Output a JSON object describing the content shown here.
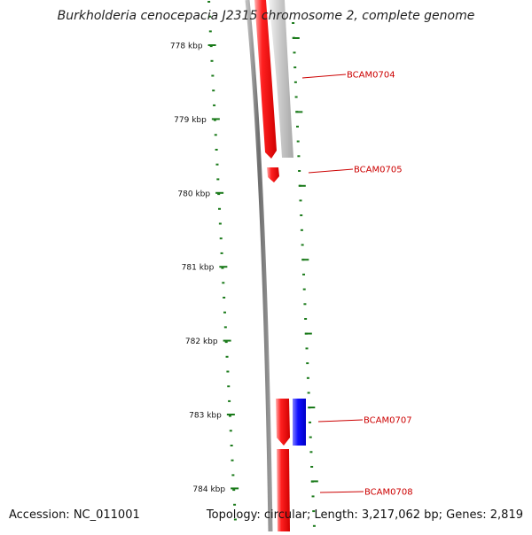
{
  "title": "Burkholderia cenocepacia J2315 chromosome 2, complete genome",
  "footer": {
    "accession": "Accession: NC_011001",
    "summary": "Topology: circular; Length: 3,217,062 bp; Genes: 2,819"
  },
  "colors": {
    "ruler": "#1a7a1a",
    "forward_gene": "#ff0000",
    "reverse_gene": "#0000ff",
    "pseudo_gene": "#bbbbbb",
    "backbone": "#7f7f7f",
    "label": "#cc0000"
  },
  "ruler_labels": [
    "778 kbp",
    "779 kbp",
    "780 kbp",
    "781 kbp",
    "782 kbp",
    "783 kbp",
    "784 kbp"
  ],
  "genes": [
    {
      "id": "BCAM0704",
      "strand": "forward"
    },
    {
      "id": "BCAM0705",
      "strand": "forward"
    },
    {
      "id": "BCAM0707",
      "strand": "reverse"
    },
    {
      "id": "BCAM0708",
      "strand": "forward"
    }
  ]
}
